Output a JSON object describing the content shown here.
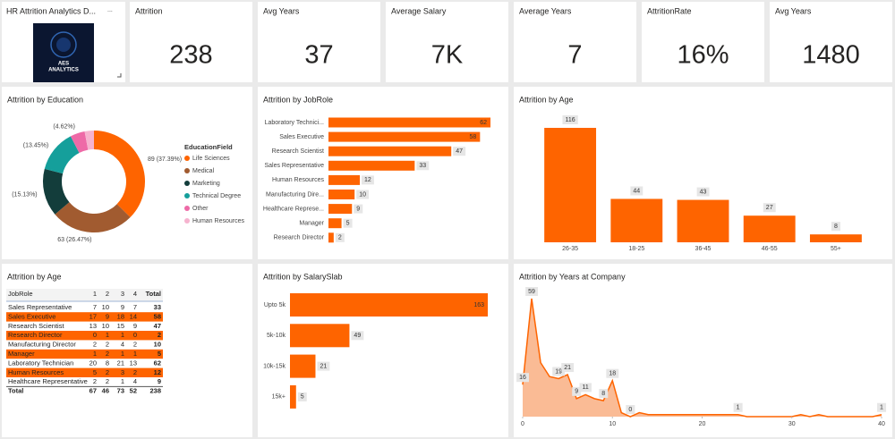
{
  "report": {
    "title": "HR Attrition Analytics D...",
    "menu": "...",
    "logo_text": [
      "AES",
      "ANALYTICS"
    ]
  },
  "cards": [
    {
      "label": "Attrition",
      "value": 238
    },
    {
      "label": "Avg Years",
      "value": 37
    },
    {
      "label": "Average Salary",
      "value": "7K"
    },
    {
      "label": "Average Years",
      "value": 7
    },
    {
      "label": "AttritionRate",
      "value": "16%"
    },
    {
      "label": "Avg Years",
      "value": 1480
    }
  ],
  "chart_data": [
    {
      "type": "donut",
      "title": "Attrition by Education",
      "legend_title": "EducationField",
      "categories": [
        "Life Sciences",
        "Medical",
        "Marketing",
        "Technical Degree",
        "Other",
        "Human Resources"
      ],
      "values": [
        89,
        63,
        36,
        32,
        11,
        7
      ],
      "value_labels": [
        "89 (37.39%)",
        "63 (26.47%)",
        "(15.13%)",
        "(13.45%)",
        "(4.62%)",
        null
      ],
      "colors": [
        "#fe6400",
        "#a15b30",
        "#133d3b",
        "#159f9b",
        "#ee6aa7",
        "#f6b3cf"
      ]
    },
    {
      "type": "bar",
      "horizontal": true,
      "title": "Attrition by JobRole",
      "categories": [
        "Laboratory Technici...",
        "Sales Executive",
        "Research Scientist",
        "Sales Representative",
        "Human Resources",
        "Manufacturing Dire...",
        "Healthcare Represe...",
        "Manager",
        "Research Director"
      ],
      "values": [
        62,
        58,
        47,
        33,
        12,
        10,
        9,
        5,
        2
      ],
      "color": "#fe6400"
    },
    {
      "type": "bar",
      "title": "Attrition by Age",
      "categories": [
        "26-35",
        "18-25",
        "36-45",
        "46-55",
        "55+"
      ],
      "values": [
        116,
        44,
        43,
        27,
        8
      ],
      "color": "#fe6400"
    },
    {
      "type": "bar",
      "horizontal": true,
      "title": "Attrition by SalarySlab",
      "categories": [
        "Upto 5k",
        "5k-10k",
        "10k-15k",
        "15k+"
      ],
      "values": [
        163,
        49,
        21,
        5
      ],
      "color": "#fe6400"
    },
    {
      "type": "area",
      "title": "Attrition by Years at Company",
      "x": [
        0,
        1,
        2,
        3,
        4,
        5,
        6,
        7,
        8,
        9,
        10,
        11,
        12,
        13,
        14,
        15,
        16,
        17,
        18,
        19,
        20,
        21,
        22,
        23,
        24,
        25,
        26,
        27,
        28,
        29,
        30,
        31,
        32,
        33,
        34,
        35,
        36,
        37,
        38,
        39,
        40
      ],
      "values": [
        16,
        59,
        27,
        20,
        19,
        21,
        9,
        11,
        9,
        8,
        18,
        2,
        0,
        2,
        1,
        1,
        1,
        1,
        1,
        1,
        1,
        1,
        1,
        1,
        1,
        0,
        0,
        0,
        0,
        0,
        0,
        1,
        0,
        1,
        0,
        0,
        0,
        0,
        0,
        0,
        1
      ],
      "value_labels": [
        "16",
        "59",
        null,
        null,
        "19",
        "21",
        "9",
        "11",
        null,
        "8",
        "18",
        null,
        "0",
        null,
        null,
        null,
        null,
        null,
        null,
        null,
        null,
        null,
        null,
        null,
        "1",
        null,
        null,
        null,
        null,
        null,
        null,
        null,
        null,
        null,
        null,
        null,
        null,
        null,
        null,
        null,
        "1"
      ],
      "xlim": [
        0,
        40
      ],
      "xticks": [
        0,
        10,
        20,
        30,
        40
      ],
      "color": "#fe6400",
      "fill": "#f9b48a"
    }
  ],
  "matrix": {
    "title": "Attrition by Age",
    "columns": [
      "JobRole",
      "1",
      "2",
      "3",
      "4",
      "Total"
    ],
    "rows": [
      [
        "Sales Representative",
        7,
        10,
        9,
        7,
        33
      ],
      [
        "Sales Executive",
        17,
        9,
        18,
        14,
        58
      ],
      [
        "Research Scientist",
        13,
        10,
        15,
        9,
        47
      ],
      [
        "Research Director",
        0,
        1,
        1,
        0,
        2
      ],
      [
        "Manufacturing Director",
        2,
        2,
        4,
        2,
        10
      ],
      [
        "Manager",
        1,
        2,
        1,
        1,
        5
      ],
      [
        "Laboratory Technician",
        20,
        8,
        21,
        13,
        62
      ],
      [
        "Human Resources",
        5,
        2,
        3,
        2,
        12
      ],
      [
        "Healthcare Representative",
        2,
        2,
        1,
        4,
        9
      ]
    ],
    "total": [
      "Total",
      67,
      46,
      73,
      52,
      238
    ]
  }
}
